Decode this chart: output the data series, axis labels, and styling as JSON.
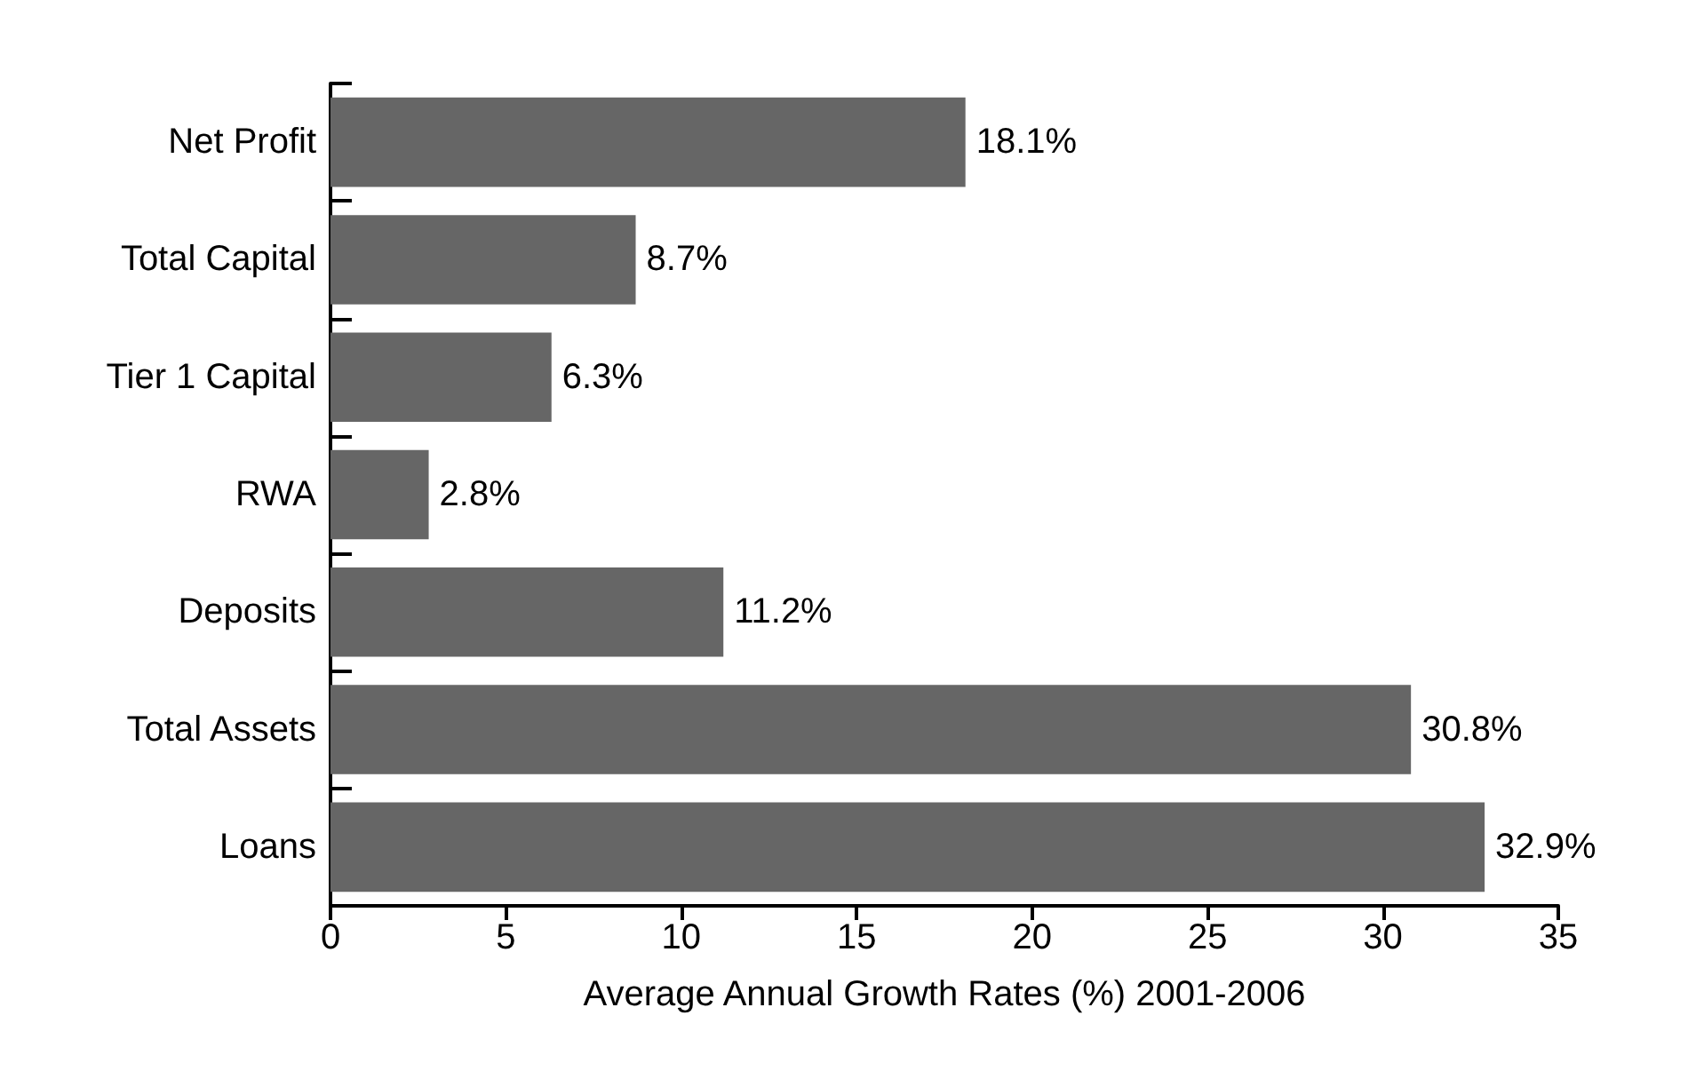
{
  "chart_data": {
    "type": "bar",
    "orientation": "horizontal",
    "xlabel": "Average Annual Growth Rates (%) 2001-2006",
    "categories": [
      "Net Profit",
      "Total Capital",
      "Tier 1 Capital",
      "RWA",
      "Deposits",
      "Total Assets",
      "Loans"
    ],
    "values": [
      18.1,
      8.7,
      6.3,
      2.8,
      11.2,
      30.8,
      32.9
    ],
    "value_labels": [
      "18.1%",
      "8.7%",
      "6.3%",
      "2.8%",
      "11.2%",
      "30.8%",
      "32.9%"
    ],
    "color": "#666666",
    "xlim": [
      0,
      35
    ],
    "xticks": [
      0,
      5,
      10,
      15,
      20,
      25,
      30,
      35
    ],
    "grid": false
  }
}
